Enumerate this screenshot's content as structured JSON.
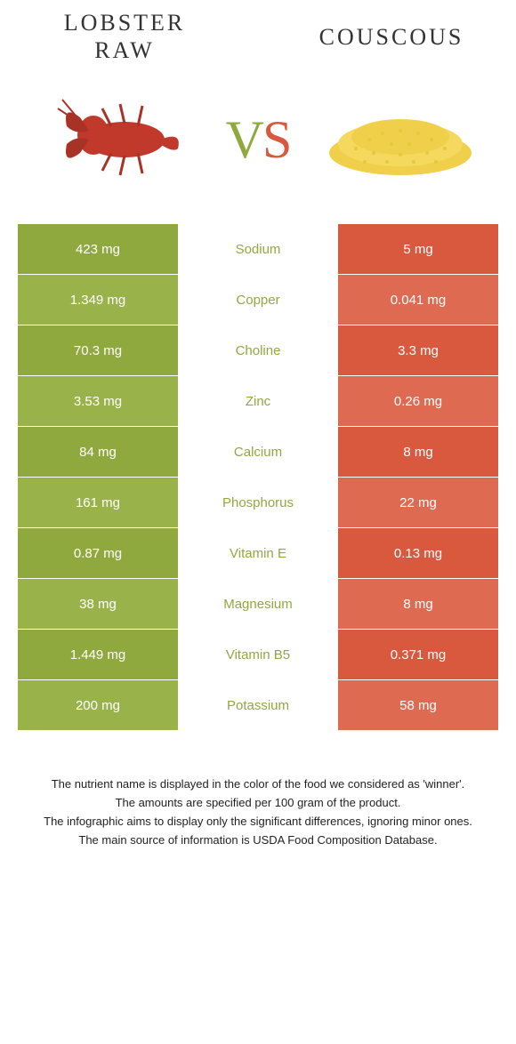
{
  "left_food": {
    "title_line1": "LOBSTER",
    "title_line2": "RAW",
    "color": "#8fa93f"
  },
  "right_food": {
    "title_line1": "COUSCOUS",
    "color": "#d9593e"
  },
  "vs": {
    "v": "V",
    "s": "S"
  },
  "rows": [
    {
      "left": "423 mg",
      "label": "Sodium",
      "right": "5 mg",
      "winner": "left"
    },
    {
      "left": "1.349 mg",
      "label": "Copper",
      "right": "0.041 mg",
      "winner": "left"
    },
    {
      "left": "70.3 mg",
      "label": "Choline",
      "right": "3.3 mg",
      "winner": "left"
    },
    {
      "left": "3.53 mg",
      "label": "Zinc",
      "right": "0.26 mg",
      "winner": "left"
    },
    {
      "left": "84 mg",
      "label": "Calcium",
      "right": "8 mg",
      "winner": "left"
    },
    {
      "left": "161 mg",
      "label": "Phosphorus",
      "right": "22 mg",
      "winner": "left"
    },
    {
      "left": "0.87 mg",
      "label": "Vitamin E",
      "right": "0.13 mg",
      "winner": "left"
    },
    {
      "left": "38 mg",
      "label": "Magnesium",
      "right": "8 mg",
      "winner": "left"
    },
    {
      "left": "1.449 mg",
      "label": "Vitamin B5",
      "right": "0.371 mg",
      "winner": "left"
    },
    {
      "left": "200 mg",
      "label": "Potassium",
      "right": "58 mg",
      "winner": "left"
    }
  ],
  "footer_lines": [
    "The nutrient name is displayed in the color of the food we considered as 'winner'.",
    "The amounts are specified per 100 gram of the product.",
    "The infographic aims to display only the significant differences, ignoring minor ones.",
    "The main source of information is USDA Food Composition Database."
  ],
  "colors": {
    "left_bg": "#8fa93f",
    "right_bg": "#d9593e",
    "row_alt_left": "#99b34a",
    "row_alt_right": "#de6a52"
  }
}
